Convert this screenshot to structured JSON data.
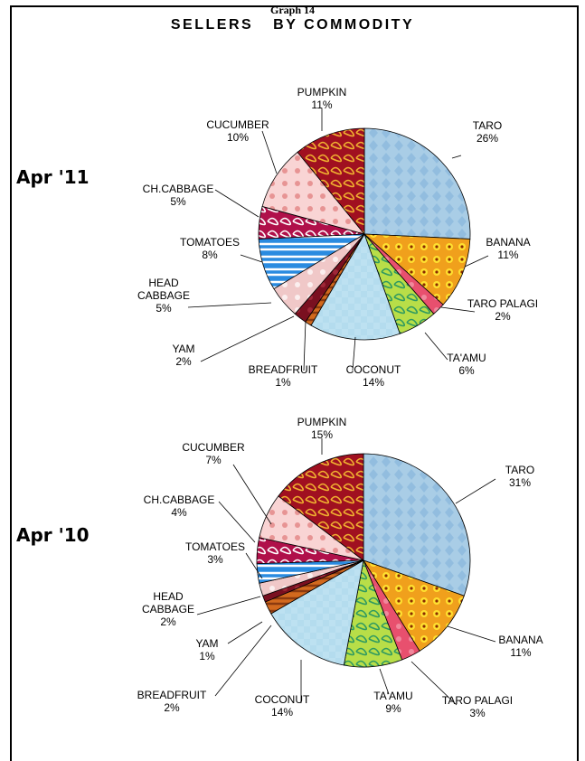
{
  "header": {
    "graph_number": "Graph 14",
    "title": "SELLERS BY COMMODITY"
  },
  "chart_data": [
    {
      "type": "pie",
      "period_label": "Apr '11",
      "slices": [
        {
          "label": "TARO",
          "value": 26,
          "value_label": "26%",
          "color": "#a9cde6"
        },
        {
          "label": "BANANA",
          "value": 11,
          "value_label": "11%",
          "color": "#f08a1c"
        },
        {
          "label": "TARO PALAGI",
          "value": 2,
          "value_label": "2%",
          "color": "#e8506e"
        },
        {
          "label": "TA'AMU",
          "value": 6,
          "value_label": "6%",
          "color": "#b8de48"
        },
        {
          "label": "COCONUT",
          "value": 14,
          "value_label": "14%",
          "color": "#b4dcee"
        },
        {
          "label": "BREADFRUIT",
          "value": 1,
          "value_label": "1%",
          "color": "#d2691e"
        },
        {
          "label": "YAM",
          "value": 2,
          "value_label": "2%",
          "color": "#7a1020"
        },
        {
          "label": "HEAD CABBAGE",
          "value": 5,
          "value_label": "5%",
          "color": "#f0c8c8"
        },
        {
          "label": "TOMATOES",
          "value": 8,
          "value_label": "8%",
          "color": "#2a8be0"
        },
        {
          "label": "CH.CABBAGE",
          "value": 5,
          "value_label": "5%",
          "color": "#b0104a"
        },
        {
          "label": "CUCUMBER",
          "value": 10,
          "value_label": "10%",
          "color": "#f9d4d4"
        },
        {
          "label": "PUMPKIN",
          "value": 11,
          "value_label": "11%",
          "color": "#a01020"
        }
      ]
    },
    {
      "type": "pie",
      "period_label": "Apr '10",
      "slices": [
        {
          "label": "TARO",
          "value": 31,
          "value_label": "31%",
          "color": "#a9cde6"
        },
        {
          "label": "BANANA",
          "value": 11,
          "value_label": "11%",
          "color": "#f08a1c"
        },
        {
          "label": "TARO PALAGI",
          "value": 3,
          "value_label": "3%",
          "color": "#e8506e"
        },
        {
          "label": "TA'AMU",
          "value": 9,
          "value_label": "9%",
          "color": "#b8de48"
        },
        {
          "label": "COCONUT",
          "value": 14,
          "value_label": "14%",
          "color": "#b4dcee"
        },
        {
          "label": "BREADFRUIT",
          "value": 2,
          "value_label": "2%",
          "color": "#d2691e"
        },
        {
          "label": "YAM",
          "value": 1,
          "value_label": "1%",
          "color": "#7a1020"
        },
        {
          "label": "HEAD CABBAGE",
          "value": 2,
          "value_label": "2%",
          "color": "#f0c8c8"
        },
        {
          "label": "TOMATOES",
          "value": 3,
          "value_label": "3%",
          "color": "#2a8be0"
        },
        {
          "label": "CH.CABBAGE",
          "value": 4,
          "value_label": "4%",
          "color": "#b0104a"
        },
        {
          "label": "CUCUMBER",
          "value": 7,
          "value_label": "7%",
          "color": "#f9d4d4"
        },
        {
          "label": "PUMPKIN",
          "value": 15,
          "value_label": "15%",
          "color": "#a01020"
        }
      ]
    }
  ]
}
